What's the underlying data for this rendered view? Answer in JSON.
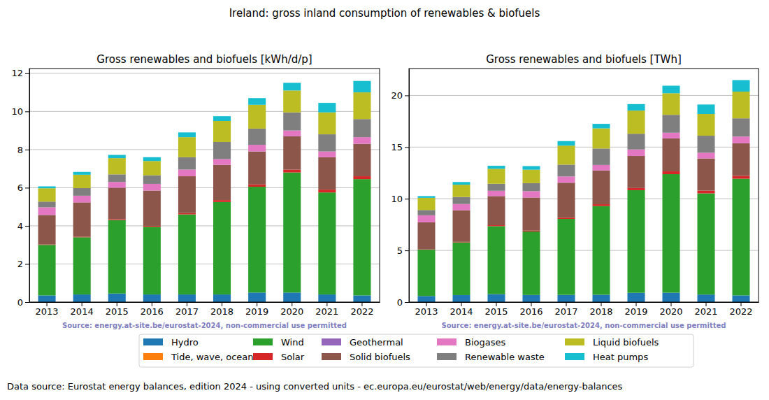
{
  "title": "Ireland: gross inland consumption of renewables & biofuels",
  "footer": "Data source: Eurostat energy balances, edition 2024 - using converted units - ec.europa.eu/eurostat/web/energy/data/energy-balances",
  "chart_data": [
    {
      "type": "bar",
      "stacked": true,
      "grid": true,
      "legend": "bottom",
      "title": "Gross renewables and biofuels [kWh/d/p]",
      "source": "Source: energy.at-site.be/eurostat-2024, non-commercial use permitted",
      "categories": [
        "2013",
        "2014",
        "2015",
        "2016",
        "2017",
        "2018",
        "2019",
        "2020",
        "2021",
        "2022"
      ],
      "ylim": [
        0,
        12.25
      ],
      "yticks": [
        0,
        2,
        4,
        6,
        8,
        10,
        12
      ],
      "series": [
        {
          "name": "Hydro",
          "color": "#1f77b4",
          "values": [
            0.35,
            0.4,
            0.45,
            0.4,
            0.4,
            0.4,
            0.5,
            0.5,
            0.4,
            0.35
          ]
        },
        {
          "name": "Tide, wave, ocean",
          "color": "#ff7f0e",
          "values": [
            0,
            0,
            0,
            0,
            0,
            0,
            0,
            0,
            0,
            0
          ]
        },
        {
          "name": "Wind",
          "color": "#2ca02c",
          "values": [
            2.65,
            3.0,
            3.85,
            3.55,
            4.2,
            4.85,
            5.55,
            6.3,
            5.35,
            6.1
          ]
        },
        {
          "name": "Solar",
          "color": "#d62728",
          "values": [
            0.02,
            0.03,
            0.05,
            0.05,
            0.07,
            0.1,
            0.12,
            0.15,
            0.15,
            0.15
          ]
        },
        {
          "name": "Geothermal",
          "color": "#9467bd",
          "values": [
            0,
            0,
            0,
            0,
            0,
            0,
            0,
            0,
            0,
            0
          ]
        },
        {
          "name": "Solid biofuels",
          "color": "#8c564b",
          "values": [
            1.55,
            1.8,
            1.65,
            1.85,
            1.93,
            1.85,
            1.73,
            1.75,
            1.7,
            1.7
          ]
        },
        {
          "name": "Biogases",
          "color": "#e377c2",
          "values": [
            0.4,
            0.35,
            0.3,
            0.35,
            0.35,
            0.3,
            0.35,
            0.3,
            0.3,
            0.35
          ]
        },
        {
          "name": "Renewable waste",
          "color": "#7f7f7f",
          "values": [
            0.3,
            0.4,
            0.4,
            0.45,
            0.65,
            0.9,
            0.85,
            0.95,
            0.9,
            0.95
          ]
        },
        {
          "name": "Liquid biofuels",
          "color": "#bcbd22",
          "values": [
            0.7,
            0.7,
            0.85,
            0.75,
            1.05,
            1.1,
            1.25,
            1.15,
            1.15,
            1.4
          ]
        },
        {
          "name": "Heat pumps",
          "color": "#17becf",
          "values": [
            0.1,
            0.15,
            0.17,
            0.2,
            0.25,
            0.25,
            0.35,
            0.4,
            0.5,
            0.6
          ]
        }
      ]
    },
    {
      "type": "bar",
      "stacked": true,
      "grid": true,
      "title": "Gross renewables and biofuels [TWh]",
      "source": "Source: energy.at-site.be/eurostat-2024, non-commercial use permitted",
      "categories": [
        "2013",
        "2014",
        "2015",
        "2016",
        "2017",
        "2018",
        "2019",
        "2020",
        "2021",
        "2022"
      ],
      "ylim": [
        0,
        22.6
      ],
      "yticks": [
        0,
        5,
        10,
        15,
        20
      ],
      "series": [
        {
          "name": "Hydro",
          "color": "#1f77b4",
          "values": [
            0.59,
            0.68,
            0.77,
            0.69,
            0.7,
            0.71,
            0.9,
            0.91,
            0.73,
            0.65
          ]
        },
        {
          "name": "Tide, wave, ocean",
          "color": "#ff7f0e",
          "values": [
            0,
            0,
            0,
            0,
            0,
            0,
            0,
            0,
            0,
            0
          ]
        },
        {
          "name": "Wind",
          "color": "#2ca02c",
          "values": [
            4.48,
            5.1,
            6.58,
            6.14,
            7.35,
            8.58,
            9.93,
            11.47,
            9.79,
            11.29
          ]
        },
        {
          "name": "Solar",
          "color": "#d62728",
          "values": [
            0.03,
            0.05,
            0.09,
            0.09,
            0.12,
            0.18,
            0.21,
            0.27,
            0.27,
            0.28
          ]
        },
        {
          "name": "Geothermal",
          "color": "#9467bd",
          "values": [
            0,
            0,
            0,
            0,
            0,
            0,
            0,
            0,
            0,
            0
          ]
        },
        {
          "name": "Solid biofuels",
          "color": "#8c564b",
          "values": [
            2.62,
            3.06,
            2.82,
            3.2,
            3.38,
            3.27,
            3.1,
            3.19,
            3.11,
            3.15
          ]
        },
        {
          "name": "Biogases",
          "color": "#e377c2",
          "values": [
            0.68,
            0.6,
            0.51,
            0.61,
            0.61,
            0.53,
            0.63,
            0.55,
            0.55,
            0.65
          ]
        },
        {
          "name": "Renewable waste",
          "color": "#7f7f7f",
          "values": [
            0.51,
            0.68,
            0.68,
            0.78,
            1.14,
            1.59,
            1.52,
            1.73,
            1.65,
            1.76
          ]
        },
        {
          "name": "Liquid biofuels",
          "color": "#bcbd22",
          "values": [
            1.18,
            1.19,
            1.45,
            1.3,
            1.84,
            1.95,
            2.24,
            2.09,
            2.1,
            2.59
          ]
        },
        {
          "name": "Heat pumps",
          "color": "#17becf",
          "values": [
            0.17,
            0.26,
            0.29,
            0.35,
            0.44,
            0.44,
            0.63,
            0.73,
            0.92,
            1.11
          ]
        }
      ]
    }
  ]
}
